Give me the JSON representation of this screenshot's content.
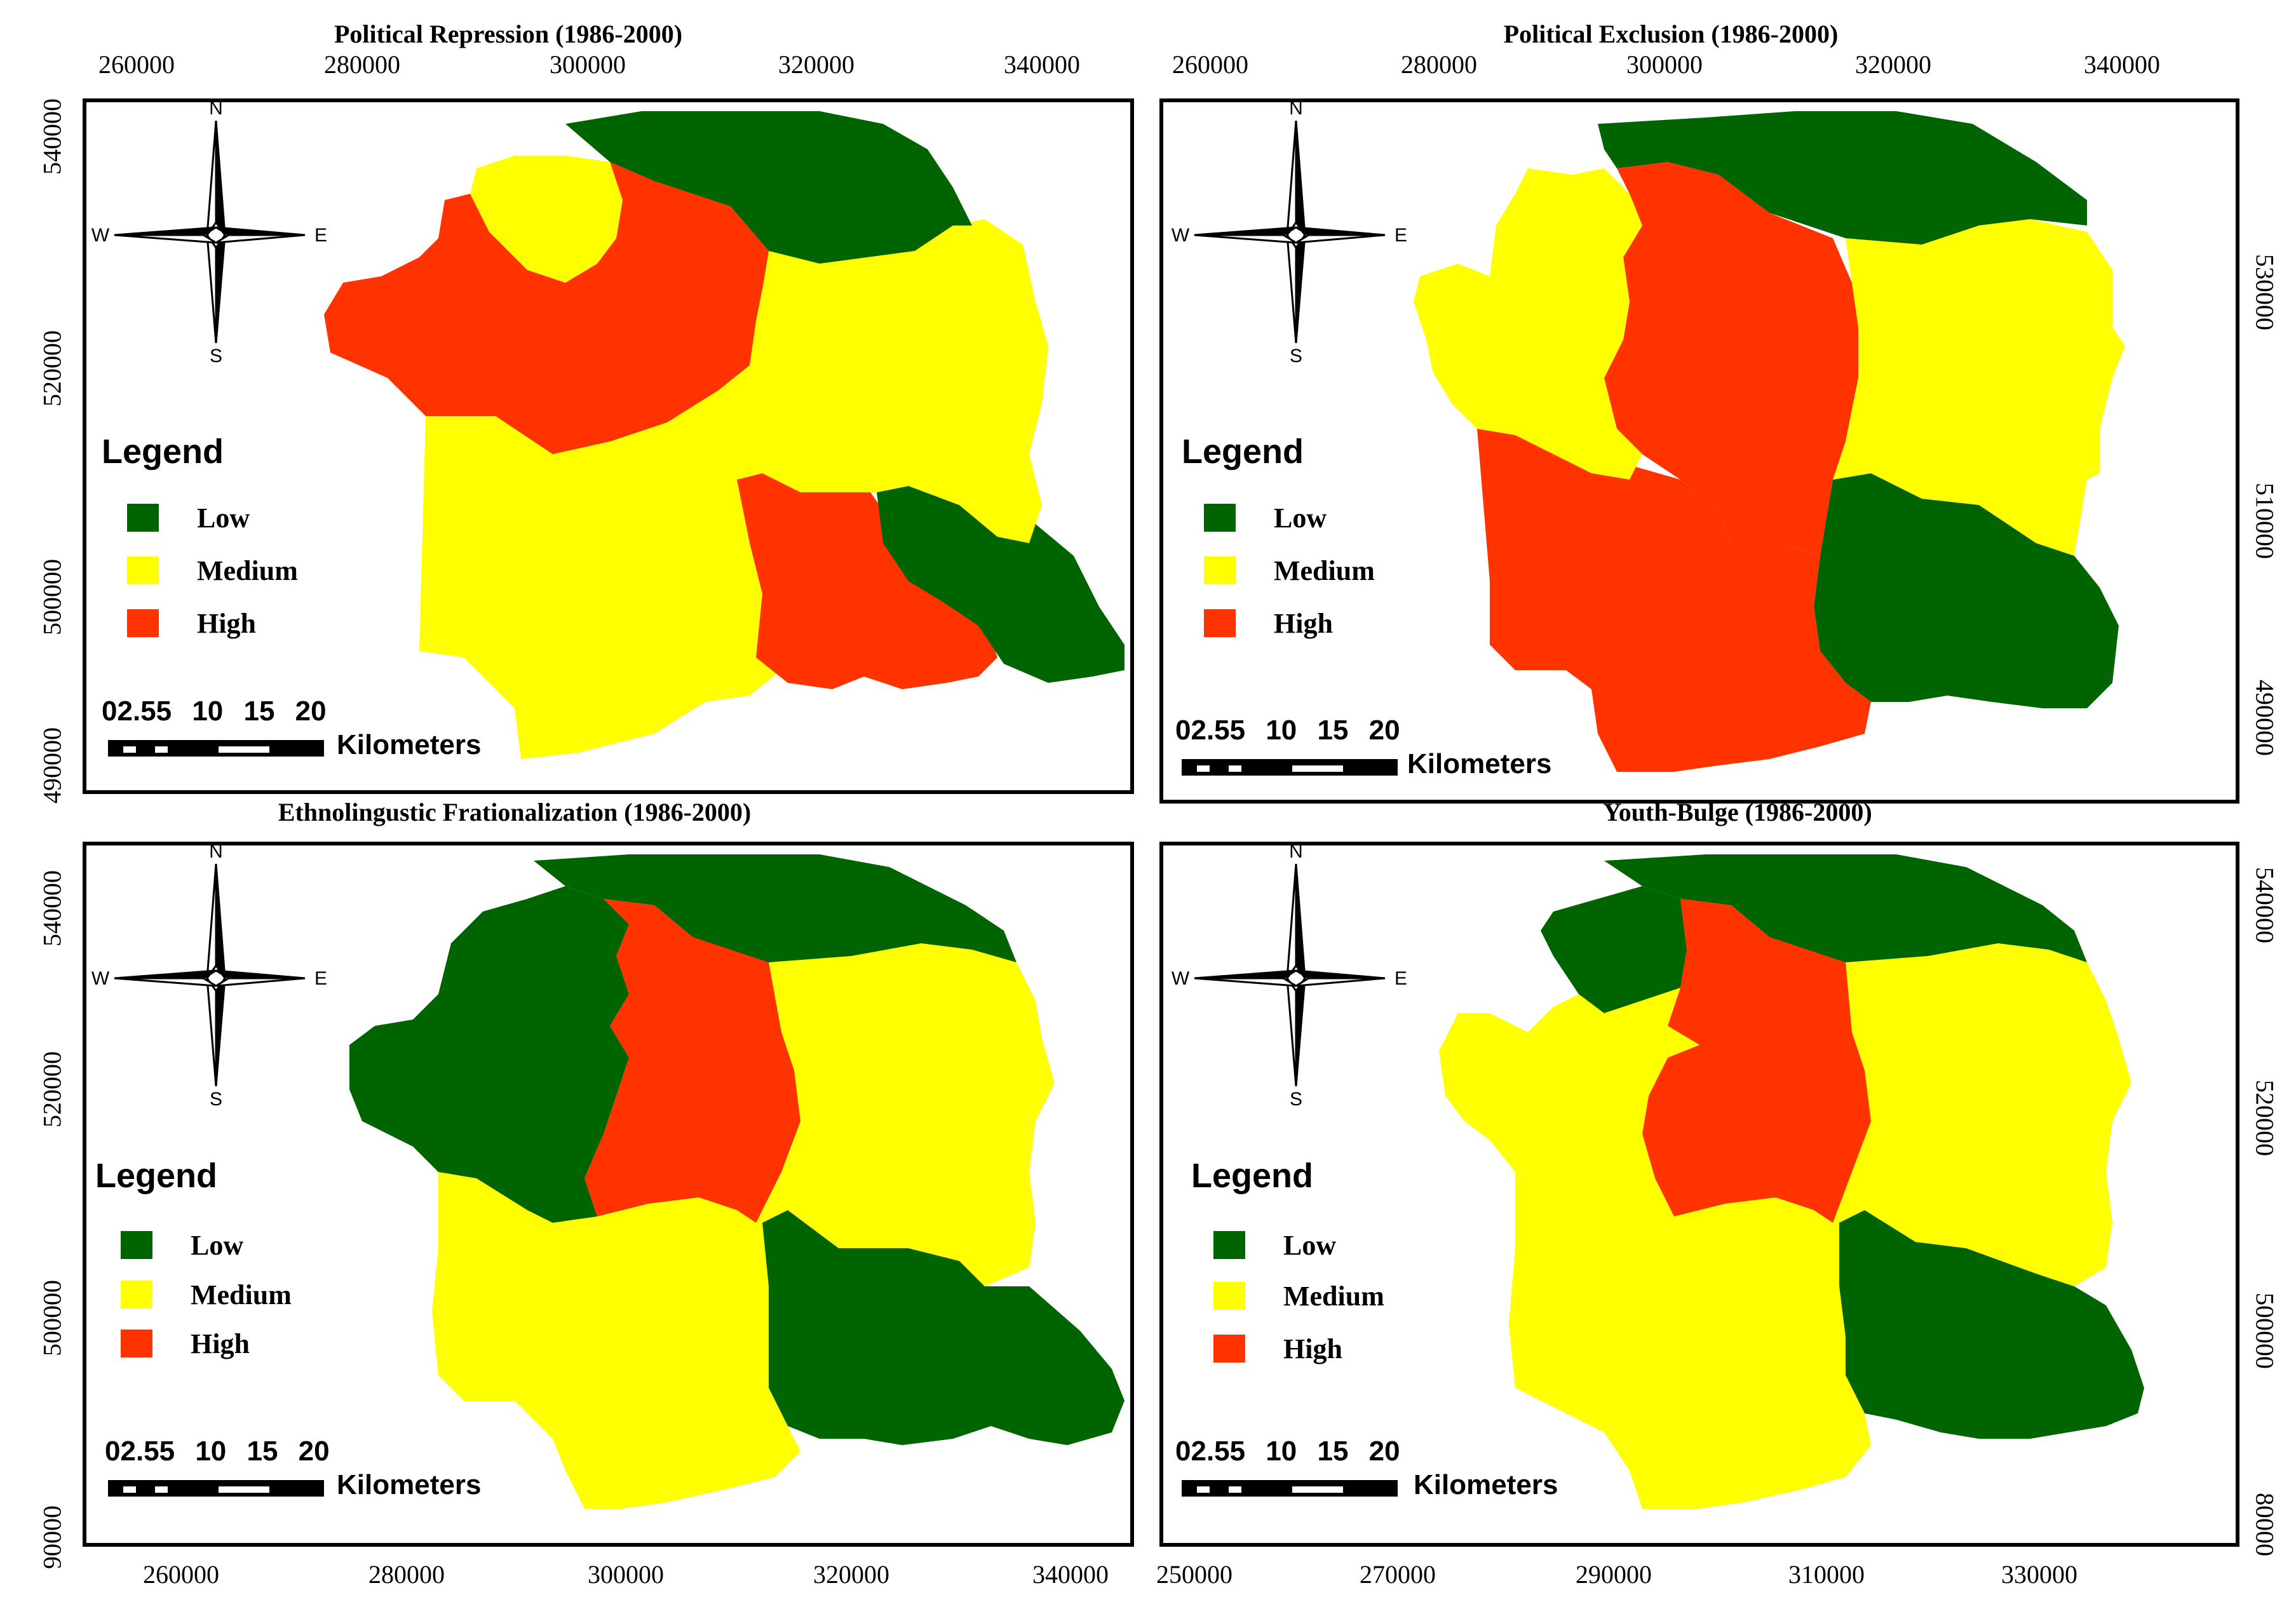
{
  "colors": {
    "low": "#006400",
    "medium": "#ffff00",
    "high": "#ff3300"
  },
  "panels": [
    {
      "title": "Political Repression (1986-2000)",
      "top_ticks": [
        "260000",
        "280000",
        "300000",
        "320000",
        "340000"
      ],
      "left_ticks": [
        "540000",
        "520000",
        "500000",
        "490000"
      ],
      "legend": {
        "title": "Legend",
        "low": "Low",
        "medium": "Medium",
        "high": "High"
      },
      "scale": {
        "numbers": "02.55 10 15 20",
        "unit": "Kilometers"
      },
      "compass": {
        "n": "N",
        "s": "S",
        "e": "E",
        "w": "W"
      },
      "regions": {
        "north": "low",
        "nw_top": "medium",
        "nw_arm": "high",
        "center_east": "medium",
        "southwest": "medium",
        "south_mid": "high",
        "southeast": "low"
      }
    },
    {
      "title": "Political Exclusion (1986-2000)",
      "top_ticks": [
        "260000",
        "280000",
        "300000",
        "320000",
        "340000"
      ],
      "right_ticks": [
        "530000",
        "510000",
        "490000"
      ],
      "legend": {
        "title": "Legend",
        "low": "Low",
        "medium": "Medium",
        "high": "High"
      },
      "scale": {
        "numbers": "02.55 10 15 20",
        "unit": "Kilometers"
      },
      "compass": {
        "n": "N",
        "s": "S",
        "e": "E",
        "w": "W"
      },
      "regions": {
        "north": "low",
        "west": "medium",
        "center": "high",
        "east": "medium",
        "southwest": "high",
        "southeast": "low"
      }
    },
    {
      "title": "Ethnolingustic Frationalization (1986-2000)",
      "left_ticks": [
        "540000",
        "520000",
        "500000",
        "90000"
      ],
      "bottom_ticks": [
        "260000",
        "280000",
        "300000",
        "320000",
        "340000"
      ],
      "legend": {
        "title": "Legend",
        "low": "Low",
        "medium": "Medium",
        "high": "High"
      },
      "scale": {
        "numbers": "02.55 10 15 20",
        "unit": "Kilometers"
      },
      "compass": {
        "n": "N",
        "s": "S",
        "e": "E",
        "w": "W"
      },
      "regions": {
        "north": "low",
        "northwest": "low",
        "center": "high",
        "east": "medium",
        "southwest": "medium",
        "southeast": "low"
      }
    },
    {
      "title": "Youth-Bulge (1986-2000)",
      "right_ticks": [
        "540000",
        "520000",
        "500000",
        "80000"
      ],
      "bottom_ticks": [
        "250000",
        "270000",
        "290000",
        "310000",
        "330000"
      ],
      "legend": {
        "title": "Legend",
        "low": "Low",
        "medium": "Medium",
        "high": "High"
      },
      "scale": {
        "numbers": "02.55 10 15 20",
        "unit": "Kilometers"
      },
      "compass": {
        "n": "N",
        "s": "S",
        "e": "E",
        "w": "W"
      },
      "regions": {
        "north": "low",
        "northwest": "low",
        "center": "high",
        "west": "medium",
        "east": "medium",
        "southwest": "medium",
        "southeast": "low"
      }
    }
  ]
}
